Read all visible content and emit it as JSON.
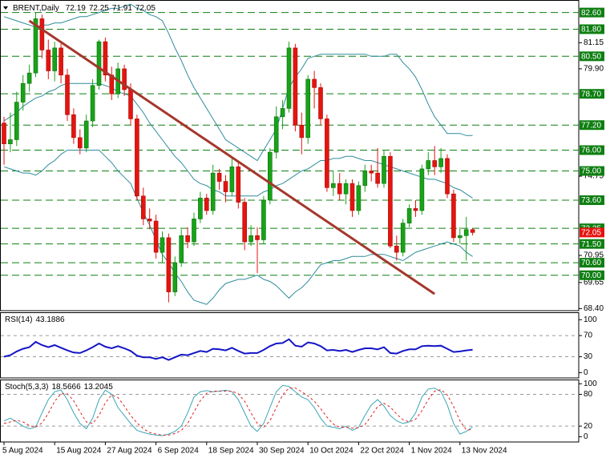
{
  "chart_data": [
    {
      "type": "candlestick",
      "title": "BRENT,Daily",
      "categories": [
        "5 Aug 2024",
        null,
        null,
        null,
        null,
        null,
        null,
        null,
        "15 Aug 2024",
        null,
        null,
        null,
        null,
        null,
        null,
        null,
        "27 Aug 2024",
        null,
        null,
        null,
        null,
        null,
        null,
        null,
        "6 Sep 2024",
        null,
        null,
        null,
        null,
        null,
        null,
        null,
        "18 Sep 2024",
        null,
        null,
        null,
        null,
        null,
        null,
        null,
        "30 Sep 2024",
        null,
        null,
        null,
        null,
        null,
        null,
        null,
        "10 Oct 2024",
        null,
        null,
        null,
        null,
        null,
        null,
        null,
        "22 Oct 2024",
        null,
        null,
        null,
        null,
        null,
        null,
        null,
        "1 Nov 2024",
        null,
        null,
        null,
        null,
        null,
        null,
        null,
        "13 Nov 2024",
        null,
        null
      ],
      "open": [
        77.3,
        76.3,
        76.5,
        78.3,
        79.2,
        79.7,
        82.3,
        80.8,
        79.8,
        80.9,
        79.6,
        77.7,
        76.6,
        76.1,
        77.4,
        79.1,
        81.2,
        79.6,
        78.7,
        79.9,
        78.9,
        77.5,
        73.8,
        72.7,
        72.6,
        71.1,
        71.8,
        69.2,
        70.6,
        71.9,
        71.6,
        72.7,
        73.7,
        73.1,
        74.9,
        74.5,
        74.0,
        75.2,
        73.5,
        71.6,
        71.9,
        71.7,
        73.6,
        75.9,
        77.6,
        78.0,
        80.9,
        77.2,
        76.6,
        79.4,
        79.0,
        77.5,
        74.2,
        74.4,
        73.9,
        74.4,
        73.1,
        74.3,
        75.0,
        74.9,
        74.4,
        75.7,
        71.4,
        71.1,
        72.5,
        73.2,
        73.1,
        75.1,
        75.5,
        75.2,
        75.6,
        73.9,
        71.8,
        71.9,
        72.19
      ],
      "high": [
        77.6,
        77.8,
        78.8,
        79.6,
        80.1,
        82.6,
        82.5,
        81.3,
        81.2,
        81.1,
        79.9,
        78.0,
        77.0,
        77.7,
        79.4,
        81.3,
        81.4,
        80.0,
        80.2,
        80.1,
        79.2,
        77.7,
        74.2,
        73.2,
        72.9,
        72.1,
        72.0,
        70.9,
        72.2,
        72.3,
        73.0,
        74.0,
        73.9,
        75.3,
        75.1,
        74.8,
        75.6,
        75.4,
        73.7,
        72.4,
        72.3,
        73.8,
        76.1,
        78.1,
        78.4,
        81.2,
        81.1,
        77.8,
        79.6,
        79.8,
        79.2,
        77.7,
        75.0,
        74.9,
        74.6,
        74.6,
        74.5,
        75.3,
        75.3,
        76.1,
        76.0,
        75.9,
        71.9,
        72.7,
        73.4,
        73.6,
        75.3,
        75.9,
        76.2,
        76.1,
        75.8,
        74.1,
        72.3,
        72.8,
        72.25
      ],
      "low": [
        75.3,
        75.9,
        76.2,
        77.9,
        78.8,
        79.5,
        80.4,
        79.4,
        79.3,
        79.2,
        77.4,
        76.3,
        75.8,
        75.9,
        77.1,
        78.9,
        79.3,
        78.4,
        78.5,
        78.6,
        77.2,
        73.6,
        72.4,
        72.2,
        70.8,
        70.6,
        68.7,
        69.0,
        70.4,
        71.3,
        71.4,
        72.5,
        72.9,
        72.9,
        74.1,
        73.5,
        73.8,
        73.2,
        71.2,
        71.4,
        70.1,
        71.5,
        73.4,
        75.6,
        77.0,
        77.8,
        76.9,
        75.8,
        76.3,
        78.0,
        77.2,
        74.0,
        73.8,
        73.6,
        73.4,
        72.8,
        72.9,
        74.0,
        74.5,
        74.2,
        74.2,
        71.3,
        70.7,
        70.9,
        72.3,
        72.8,
        72.9,
        74.8,
        74.8,
        74.9,
        73.7,
        71.6,
        71.5,
        70.7,
        71.91
      ],
      "close": [
        76.3,
        76.5,
        78.3,
        79.2,
        79.7,
        82.3,
        80.8,
        79.8,
        80.9,
        79.6,
        77.7,
        76.6,
        76.1,
        77.4,
        79.1,
        81.2,
        79.6,
        78.7,
        79.9,
        78.9,
        77.5,
        73.8,
        72.7,
        72.6,
        71.1,
        71.8,
        69.2,
        70.6,
        71.9,
        71.6,
        72.7,
        73.7,
        73.1,
        74.9,
        74.5,
        74.0,
        75.2,
        73.5,
        71.6,
        71.9,
        71.7,
        73.6,
        75.9,
        77.6,
        78.0,
        80.9,
        77.2,
        76.6,
        79.4,
        79.0,
        77.5,
        74.2,
        74.4,
        73.9,
        74.4,
        73.1,
        74.3,
        75.0,
        74.9,
        74.4,
        75.7,
        71.4,
        71.1,
        72.5,
        73.2,
        73.1,
        75.1,
        75.5,
        75.2,
        75.6,
        73.9,
        71.8,
        71.9,
        72.19,
        72.05
      ],
      "up_color": "#17a317",
      "down_color": "#e5140f",
      "overlays": [
        {
          "color": "#2f8c9c",
          "values": [
            82.4,
            82.3,
            82.2,
            82.1,
            82.0,
            81.9,
            82.0,
            82.0,
            82.1,
            82.1,
            82.2,
            82.3,
            82.4,
            82.4,
            82.5,
            82.6,
            82.7,
            82.8,
            82.8,
            82.9,
            83.0,
            82.8,
            82.7,
            82.5,
            82.4,
            82.2,
            81.6,
            80.9,
            80.3,
            79.6,
            79.0,
            78.5,
            78.0,
            77.5,
            77.0,
            76.5,
            76.3,
            76.1,
            75.9,
            75.7,
            75.5,
            76.0,
            76.5,
            77.0,
            78.0,
            79.0,
            79.5,
            79.9,
            80.4,
            80.5,
            80.6,
            80.6,
            80.6,
            80.6,
            80.6,
            80.6,
            80.6,
            80.6,
            80.5,
            80.5,
            80.5,
            80.6,
            80.6,
            80.2,
            79.9,
            79.5,
            78.9,
            78.2,
            77.6,
            77.2,
            76.8,
            76.8,
            76.8,
            76.7,
            76.7
          ]
        },
        {
          "color": "#2f8c9c",
          "values": [
            77.4,
            77.6,
            77.8,
            78.1,
            78.3,
            78.5,
            78.6,
            78.8,
            78.9,
            79.1,
            79.2,
            79.2,
            79.2,
            79.2,
            79.2,
            79.2,
            79.1,
            79.0,
            78.8,
            78.7,
            78.6,
            78.2,
            77.8,
            77.3,
            76.9,
            76.5,
            76.1,
            75.7,
            75.4,
            75.0,
            74.6,
            74.4,
            74.3,
            74.1,
            74.0,
            73.8,
            73.8,
            73.8,
            73.8,
            73.8,
            73.8,
            74.0,
            74.1,
            74.3,
            74.4,
            74.6,
            74.8,
            75.0,
            75.1,
            75.3,
            75.5,
            75.5,
            75.6,
            75.6,
            75.7,
            75.7,
            75.6,
            75.5,
            75.5,
            75.4,
            75.3,
            75.2,
            75.1,
            75.0,
            74.9,
            74.8,
            74.7,
            74.6,
            74.6,
            74.5,
            74.4,
            74.2,
            74.1,
            73.9,
            73.7
          ]
        },
        {
          "color": "#2f8c9c",
          "values": [
            75.2,
            75.1,
            75.0,
            74.9,
            74.9,
            74.8,
            75.0,
            75.3,
            75.5,
            75.8,
            76.0,
            76.0,
            76.0,
            76.0,
            76.0,
            76.0,
            75.7,
            75.4,
            75.0,
            74.7,
            74.4,
            73.7,
            73.0,
            72.4,
            71.7,
            71.0,
            70.6,
            70.1,
            69.7,
            69.2,
            68.8,
            68.7,
            68.6,
            68.9,
            69.3,
            69.6,
            69.7,
            69.8,
            69.8,
            69.9,
            70.0,
            69.8,
            69.7,
            69.5,
            69.2,
            68.9,
            69.2,
            69.4,
            69.7,
            70.1,
            70.5,
            70.6,
            70.7,
            70.7,
            70.8,
            70.9,
            70.9,
            70.9,
            71.0,
            71.0,
            71.0,
            70.9,
            70.8,
            70.7,
            70.9,
            71.1,
            71.2,
            71.3,
            71.4,
            71.5,
            71.6,
            71.5,
            71.4,
            71.1,
            70.9
          ]
        }
      ],
      "trendline": {
        "color": "#a5372c",
        "x": [
          4,
          68
        ],
        "values": [
          82.2,
          69.1
        ]
      },
      "levels": [
        {
          "value": 82.6,
          "label": "82.60"
        },
        {
          "value": 81.8,
          "label": "81.80"
        },
        {
          "value": 80.5,
          "label": "80.50"
        },
        {
          "value": 78.7,
          "label": "78.70"
        },
        {
          "value": 77.2,
          "label": "77.20"
        },
        {
          "value": 76,
          "label": "76.00"
        },
        {
          "value": 75,
          "label": "75.00"
        },
        {
          "value": 73.6,
          "label": "73.60"
        },
        72.25,
        {
          "value": 71.5,
          "label": "71.50"
        },
        {
          "value": 70.6,
          "label": "70.60"
        },
        {
          "value": 70,
          "label": "70.00"
        }
      ],
      "level_color": "#0f7f12",
      "ylim": [
        68.3,
        83.2
      ],
      "yticks": [
        81.15,
        {
          "value": 79.9,
          "label": "79.90"
        },
        74.75,
        70.95,
        69.65,
        {
          "value": 68.4,
          "label": "68.40"
        }
      ]
    },
    {
      "type": "line",
      "title": "RSI(14)",
      "series": [
        {
          "color": "#1414c8",
          "values": [
            30,
            33,
            40,
            45,
            48,
            58,
            52,
            48,
            52,
            47,
            42,
            38,
            37,
            42,
            48,
            55,
            49,
            46,
            50,
            46,
            41,
            32,
            29,
            29,
            26,
            29,
            24,
            29,
            34,
            33,
            37,
            41,
            39,
            45,
            44,
            42,
            47,
            41,
            36,
            37,
            37,
            43,
            50,
            55,
            56,
            63,
            51,
            49,
            57,
            55,
            50,
            42,
            43,
            41,
            43,
            39,
            43,
            46,
            46,
            44,
            48,
            37,
            36,
            41,
            44,
            44,
            50,
            51,
            50,
            51,
            45,
            39,
            40,
            42,
            43.1886
          ]
        }
      ],
      "ylim": [
        -10,
        114
      ],
      "yticks": [
        100,
        70,
        30,
        0
      ],
      "levels": [
        70,
        30
      ]
    },
    {
      "type": "line",
      "title": "Stoch(5,3,3)",
      "series": [
        {
          "color": "#3aa6b6",
          "values": [
            30,
            35,
            28,
            20,
            15,
            18,
            45,
            70,
            85,
            88,
            70,
            45,
            25,
            15,
            35,
            70,
            88,
            80,
            55,
            40,
            25,
            12,
            8,
            5,
            3,
            2,
            5,
            10,
            20,
            45,
            75,
            85,
            87,
            85,
            86,
            88,
            85,
            70,
            45,
            20,
            10,
            25,
            55,
            85,
            97,
            95,
            85,
            75,
            70,
            55,
            35,
            20,
            18,
            15,
            20,
            12,
            18,
            40,
            60,
            70,
            58,
            40,
            30,
            25,
            28,
            45,
            75,
            90,
            92,
            85,
            60,
            25,
            5,
            10,
            18.5666
          ]
        },
        {
          "color": "#e02020",
          "dash": true,
          "values": [
            25,
            28,
            31,
            28,
            21,
            18,
            26,
            44,
            67,
            81,
            81,
            68,
            47,
            28,
            25,
            40,
            64,
            79,
            74,
            58,
            40,
            26,
            15,
            8,
            5,
            3,
            3,
            6,
            12,
            25,
            47,
            68,
            82,
            86,
            86,
            86,
            86,
            81,
            67,
            45,
            25,
            18,
            30,
            55,
            79,
            92,
            92,
            85,
            77,
            67,
            53,
            37,
            24,
            18,
            18,
            16,
            17,
            23,
            39,
            57,
            63,
            56,
            43,
            32,
            28,
            33,
            49,
            70,
            86,
            89,
            79,
            57,
            30,
            13,
            13.2045
          ]
        }
      ],
      "ylim": [
        -10,
        108
      ],
      "yticks": [
        100,
        80,
        20,
        0
      ],
      "levels": [
        80,
        20
      ]
    }
  ]
}
